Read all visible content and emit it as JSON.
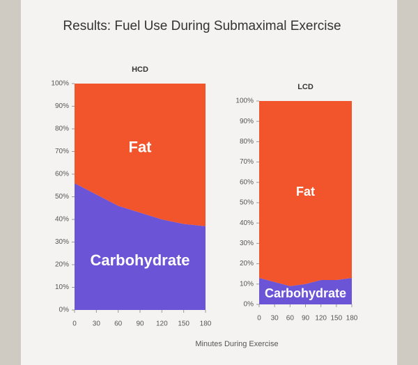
{
  "title": "Results: Fuel Use During Submaximal Exercise",
  "x_label": "Minutes During Exercise",
  "chart_data": [
    {
      "type": "area",
      "stacked": true,
      "title": "HCD",
      "x": [
        0,
        30,
        60,
        90,
        120,
        150,
        180
      ],
      "xlim": [
        0,
        180
      ],
      "xticks": [
        0,
        30,
        60,
        90,
        120,
        150,
        180
      ],
      "ylim": [
        0,
        100
      ],
      "yticks": [
        {
          "value": 0,
          "label": "0%"
        },
        {
          "value": 10,
          "label": "10%"
        },
        {
          "value": 20,
          "label": "20%"
        },
        {
          "value": 30,
          "label": "30%"
        },
        {
          "value": 40,
          "label": "40%"
        },
        {
          "value": 50,
          "label": "50%"
        },
        {
          "value": 60,
          "label": "60%"
        },
        {
          "value": 70,
          "label": "70%"
        },
        {
          "value": 80,
          "label": "80%"
        },
        {
          "value": 90,
          "label": "90%"
        },
        {
          "value": 100,
          "label": "100%"
        }
      ],
      "series": [
        {
          "name": "Carbohydrate",
          "color": "#6b55d6",
          "values": [
            56,
            51,
            46,
            43,
            40,
            38,
            37
          ]
        },
        {
          "name": "Fat",
          "color": "#f2542b",
          "values": [
            44,
            49,
            54,
            57,
            60,
            62,
            63
          ]
        }
      ]
    },
    {
      "type": "area",
      "stacked": true,
      "title": "LCD",
      "x": [
        0,
        30,
        60,
        90,
        120,
        150,
        180
      ],
      "xlim": [
        0,
        180
      ],
      "xticks": [
        0,
        30,
        60,
        90,
        120,
        150,
        180
      ],
      "ylim": [
        0,
        100
      ],
      "yticks": [
        {
          "value": 0,
          "label": "0%"
        },
        {
          "value": 10,
          "label": "10%"
        },
        {
          "value": 20,
          "label": "20%"
        },
        {
          "value": 30,
          "label": "30%"
        },
        {
          "value": 40,
          "label": "40%"
        },
        {
          "value": 50,
          "label": "50%"
        },
        {
          "value": 60,
          "label": "60%"
        },
        {
          "value": 70,
          "label": "70%"
        },
        {
          "value": 80,
          "label": "80%"
        },
        {
          "value": 90,
          "label": "90%"
        },
        {
          "value": 100,
          "label": "100%"
        }
      ],
      "series": [
        {
          "name": "Carbohydrate",
          "color": "#6b55d6",
          "values": [
            13,
            11,
            9,
            10,
            12,
            12,
            13
          ]
        },
        {
          "name": "Fat",
          "color": "#f2542b",
          "values": [
            87,
            89,
            91,
            90,
            88,
            88,
            87
          ]
        }
      ]
    }
  ]
}
